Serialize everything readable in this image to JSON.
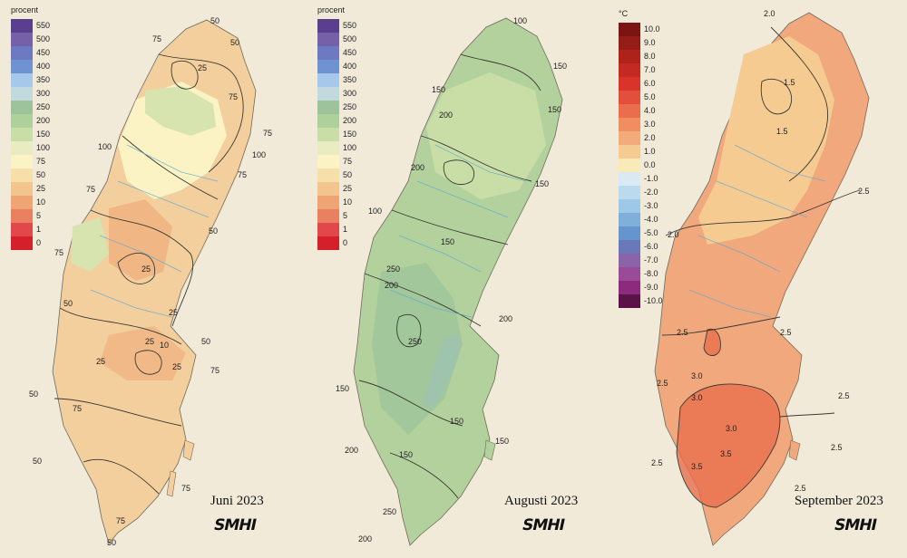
{
  "legend_precip": {
    "unit": "procent",
    "classes": [
      {
        "label": "550",
        "color": "#5a3f8f"
      },
      {
        "label": "500",
        "color": "#7561a8"
      },
      {
        "label": "450",
        "color": "#6d79c0"
      },
      {
        "label": "400",
        "color": "#6f93d0"
      },
      {
        "label": "350",
        "color": "#a6c8ea"
      },
      {
        "label": "300",
        "color": "#c2d9dd"
      },
      {
        "label": "250",
        "color": "#9cc39a"
      },
      {
        "label": "200",
        "color": "#aed09a"
      },
      {
        "label": "150",
        "color": "#c8dea6"
      },
      {
        "label": "100",
        "color": "#e8ecc0"
      },
      {
        "label": "75",
        "color": "#fbf3c4"
      },
      {
        "label": "50",
        "color": "#f7dfa9"
      },
      {
        "label": "25",
        "color": "#f3c48d"
      },
      {
        "label": "10",
        "color": "#efa473"
      },
      {
        "label": "5",
        "color": "#e9805f"
      },
      {
        "label": "1",
        "color": "#e2484a"
      },
      {
        "label": "0",
        "color": "#d4202a"
      }
    ]
  },
  "legend_temp": {
    "unit": "°C",
    "classes": [
      {
        "label": "10.0",
        "color": "#7a1512"
      },
      {
        "label": "9.0",
        "color": "#941d17"
      },
      {
        "label": "8.0",
        "color": "#ad231c"
      },
      {
        "label": "7.0",
        "color": "#c42a22"
      },
      {
        "label": "6.0",
        "color": "#d8342a"
      },
      {
        "label": "5.0",
        "color": "#e24f3a"
      },
      {
        "label": "4.0",
        "color": "#ea6e4c"
      },
      {
        "label": "3.0",
        "color": "#f08e62"
      },
      {
        "label": "2.0",
        "color": "#f3ab7c"
      },
      {
        "label": "1.0",
        "color": "#f6cb92"
      },
      {
        "label": "0.0",
        "color": "#faeab8"
      },
      {
        "label": "-1.0",
        "color": "#d9eaf4"
      },
      {
        "label": "-2.0",
        "color": "#bcdaee"
      },
      {
        "label": "-3.0",
        "color": "#9dc8e6"
      },
      {
        "label": "-4.0",
        "color": "#7fb0db"
      },
      {
        "label": "-5.0",
        "color": "#6495cc"
      },
      {
        "label": "-6.0",
        "color": "#6a77b8"
      },
      {
        "label": "-7.0",
        "color": "#8b63a8"
      },
      {
        "label": "-8.0",
        "color": "#9a4b97"
      },
      {
        "label": "-9.0",
        "color": "#8c2a7e"
      },
      {
        "label": "-10.0",
        "color": "#5a1248"
      }
    ]
  },
  "maps": [
    {
      "caption": "Juni 2023",
      "logo": "SMHI",
      "base_color": "#f2cf9c",
      "contour_labels": [
        {
          "text": "50"
        },
        {
          "text": "75"
        },
        {
          "text": "25"
        },
        {
          "text": "50"
        },
        {
          "text": "75"
        },
        {
          "text": "100"
        },
        {
          "text": "75"
        },
        {
          "text": "100"
        },
        {
          "text": "75"
        },
        {
          "text": "75"
        },
        {
          "text": "50"
        },
        {
          "text": "25"
        },
        {
          "text": "75"
        },
        {
          "text": "50"
        },
        {
          "text": "25"
        },
        {
          "text": "25"
        },
        {
          "text": "10"
        },
        {
          "text": "50"
        },
        {
          "text": "25"
        },
        {
          "text": "25"
        },
        {
          "text": "75"
        },
        {
          "text": "50"
        },
        {
          "text": "75"
        },
        {
          "text": "50"
        },
        {
          "text": "75"
        },
        {
          "text": "75"
        },
        {
          "text": "50"
        }
      ]
    },
    {
      "caption": "Augusti 2023",
      "logo": "SMHI",
      "base_color": "#b3d19d",
      "contour_labels": [
        {
          "text": "100"
        },
        {
          "text": "150"
        },
        {
          "text": "150"
        },
        {
          "text": "200"
        },
        {
          "text": "150"
        },
        {
          "text": "200"
        },
        {
          "text": "150"
        },
        {
          "text": "100"
        },
        {
          "text": "150"
        },
        {
          "text": "200"
        },
        {
          "text": "250"
        },
        {
          "text": "200"
        },
        {
          "text": "250"
        },
        {
          "text": "150"
        },
        {
          "text": "150"
        },
        {
          "text": "200"
        },
        {
          "text": "150"
        },
        {
          "text": "150"
        },
        {
          "text": "250"
        },
        {
          "text": "200"
        }
      ]
    },
    {
      "caption": "September 2023",
      "logo": "SMHI",
      "base_color": "#f0a87c",
      "contour_labels": [
        {
          "text": "2.0"
        },
        {
          "text": "1.5"
        },
        {
          "text": "1.5"
        },
        {
          "text": "2.5"
        },
        {
          "text": "2.0"
        },
        {
          "text": "2.5"
        },
        {
          "text": "2.5"
        },
        {
          "text": "3.0"
        },
        {
          "text": "3.0"
        },
        {
          "text": "3.0"
        },
        {
          "text": "3.5"
        },
        {
          "text": "3.5"
        },
        {
          "text": "2.5"
        },
        {
          "text": "2.5"
        },
        {
          "text": "2.5"
        },
        {
          "text": "2.5"
        },
        {
          "text": "2.5"
        }
      ]
    }
  ]
}
